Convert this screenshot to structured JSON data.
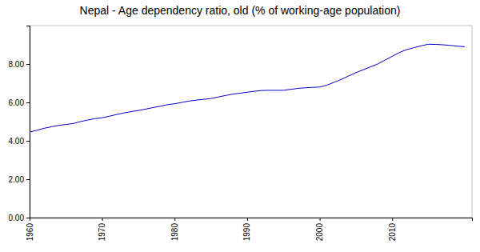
{
  "chart_data": {
    "type": "line",
    "title": "Nepal - Age dependency ratio, old (% of working-age population)",
    "x": [
      1960,
      1961,
      1962,
      1963,
      1964,
      1965,
      1966,
      1967,
      1968,
      1969,
      1970,
      1971,
      1972,
      1973,
      1974,
      1975,
      1976,
      1977,
      1978,
      1979,
      1980,
      1981,
      1982,
      1983,
      1984,
      1985,
      1986,
      1987,
      1988,
      1989,
      1990,
      1991,
      1992,
      1993,
      1994,
      1995,
      1996,
      1997,
      1998,
      1999,
      2000,
      2001,
      2002,
      2003,
      2004,
      2005,
      2006,
      2007,
      2008,
      2009,
      2010,
      2011,
      2012,
      2013,
      2014,
      2015,
      2016,
      2017,
      2018,
      2019,
      2020
    ],
    "values": [
      4.45,
      4.55,
      4.65,
      4.73,
      4.8,
      4.85,
      4.9,
      5.0,
      5.08,
      5.15,
      5.2,
      5.28,
      5.37,
      5.45,
      5.52,
      5.58,
      5.65,
      5.73,
      5.8,
      5.88,
      5.93,
      6.0,
      6.07,
      6.12,
      6.16,
      6.2,
      6.28,
      6.36,
      6.43,
      6.48,
      6.53,
      6.58,
      6.62,
      6.63,
      6.63,
      6.63,
      6.68,
      6.73,
      6.76,
      6.78,
      6.8,
      6.9,
      7.05,
      7.2,
      7.38,
      7.55,
      7.7,
      7.85,
      8.0,
      8.2,
      8.4,
      8.6,
      8.75,
      8.85,
      8.95,
      9.03,
      9.02,
      9.0,
      8.97,
      8.93,
      8.9
    ],
    "color": "#0000cc",
    "xlim": [
      1960,
      2021
    ],
    "xticks": [
      1960,
      1970,
      1980,
      1990,
      2000,
      2010
    ],
    "ylim": [
      0,
      10
    ],
    "yticks": [
      {
        "value": 0,
        "label": "0.00"
      },
      {
        "value": 2,
        "label": "2.00"
      },
      {
        "value": 4,
        "label": "4.00"
      },
      {
        "value": 6,
        "label": "6.00"
      },
      {
        "value": 8,
        "label": "8.00"
      }
    ],
    "grid": false
  }
}
